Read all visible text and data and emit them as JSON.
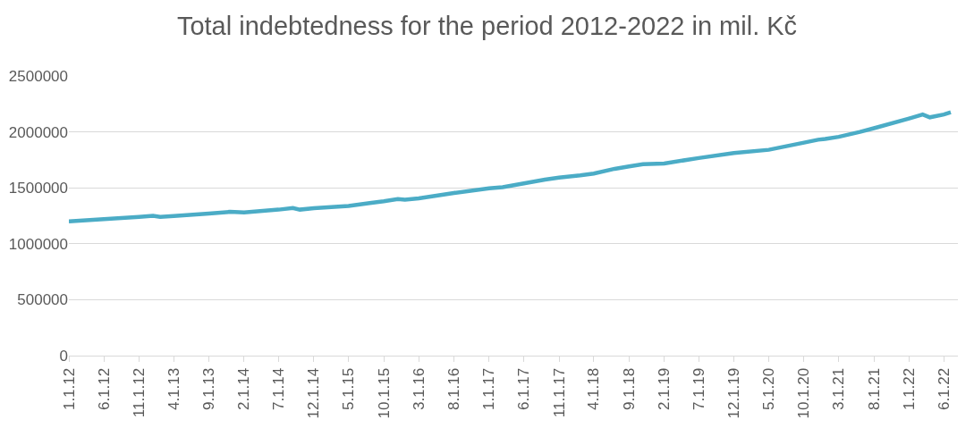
{
  "chart_data": {
    "type": "line",
    "title": "Total indebtedness for the period 2012-2022 in mil. Kč",
    "x": [
      "2012-01",
      "2012-06",
      "2012-11",
      "2013-01",
      "2013-02",
      "2013-04",
      "2013-09",
      "2013-12",
      "2014-02",
      "2014-07",
      "2014-09",
      "2014-10",
      "2014-12",
      "2015-05",
      "2015-08",
      "2015-10",
      "2015-12",
      "2016-01",
      "2016-03",
      "2016-08",
      "2017-01",
      "2017-03",
      "2017-06",
      "2017-09",
      "2017-11",
      "2018-02",
      "2018-04",
      "2018-07",
      "2018-09",
      "2018-11",
      "2019-02",
      "2019-07",
      "2019-12",
      "2020-05",
      "2020-10",
      "2020-12",
      "2021-01",
      "2021-03",
      "2021-06",
      "2021-08",
      "2022-01",
      "2022-03",
      "2022-04",
      "2022-06",
      "2022-07"
    ],
    "series": [
      {
        "color": "#4bacc6",
        "values": [
          1200000,
          1220000,
          1240000,
          1250000,
          1240000,
          1248000,
          1270000,
          1285000,
          1280000,
          1305000,
          1320000,
          1305000,
          1318000,
          1338000,
          1364000,
          1380000,
          1400000,
          1393000,
          1406000,
          1454000,
          1496000,
          1505000,
          1540000,
          1573000,
          1592000,
          1612000,
          1628000,
          1670000,
          1692000,
          1711000,
          1718000,
          1766000,
          1811000,
          1840000,
          1904000,
          1930000,
          1937000,
          1956000,
          2000000,
          2033000,
          2120000,
          2155000,
          2130000,
          2155000,
          2175000
        ]
      }
    ],
    "xlim": [
      "2012-01-01",
      "2022-08-01"
    ],
    "xticks": [
      {
        "value": "2012-01-01",
        "label": "1.1.12"
      },
      {
        "value": "2012-06-01",
        "label": "6.1.12"
      },
      {
        "value": "2012-11-01",
        "label": "11.1.12"
      },
      {
        "value": "2013-04-01",
        "label": "4.1.13"
      },
      {
        "value": "2013-09-01",
        "label": "9.1.13"
      },
      {
        "value": "2014-02-01",
        "label": "2.1.14"
      },
      {
        "value": "2014-07-01",
        "label": "7.1.14"
      },
      {
        "value": "2014-12-01",
        "label": "12.1.14"
      },
      {
        "value": "2015-05-01",
        "label": "5.1.15"
      },
      {
        "value": "2015-10-01",
        "label": "10.1.15"
      },
      {
        "value": "2016-03-01",
        "label": "3.1.16"
      },
      {
        "value": "2016-08-01",
        "label": "8.1.16"
      },
      {
        "value": "2017-01-01",
        "label": "1.1.17"
      },
      {
        "value": "2017-06-01",
        "label": "6.1.17"
      },
      {
        "value": "2017-11-01",
        "label": "11.1.17"
      },
      {
        "value": "2018-04-01",
        "label": "4.1.18"
      },
      {
        "value": "2018-09-01",
        "label": "9.1.18"
      },
      {
        "value": "2019-02-01",
        "label": "2.1.19"
      },
      {
        "value": "2019-07-01",
        "label": "7.1.19"
      },
      {
        "value": "2019-12-01",
        "label": "12.1.19"
      },
      {
        "value": "2020-05-01",
        "label": "5.1.20"
      },
      {
        "value": "2020-10-01",
        "label": "10.1.20"
      },
      {
        "value": "2021-03-01",
        "label": "3.1.21"
      },
      {
        "value": "2021-08-01",
        "label": "8.1.21"
      },
      {
        "value": "2022-01-01",
        "label": "1.1.22"
      },
      {
        "value": "2022-06-01",
        "label": "6.1.22"
      }
    ],
    "ylim": [
      0,
      2500000
    ],
    "yticks": [
      0,
      500000,
      1000000,
      1500000,
      2000000,
      2500000
    ],
    "grid": "y",
    "marker": "none",
    "line_style": "solid"
  }
}
